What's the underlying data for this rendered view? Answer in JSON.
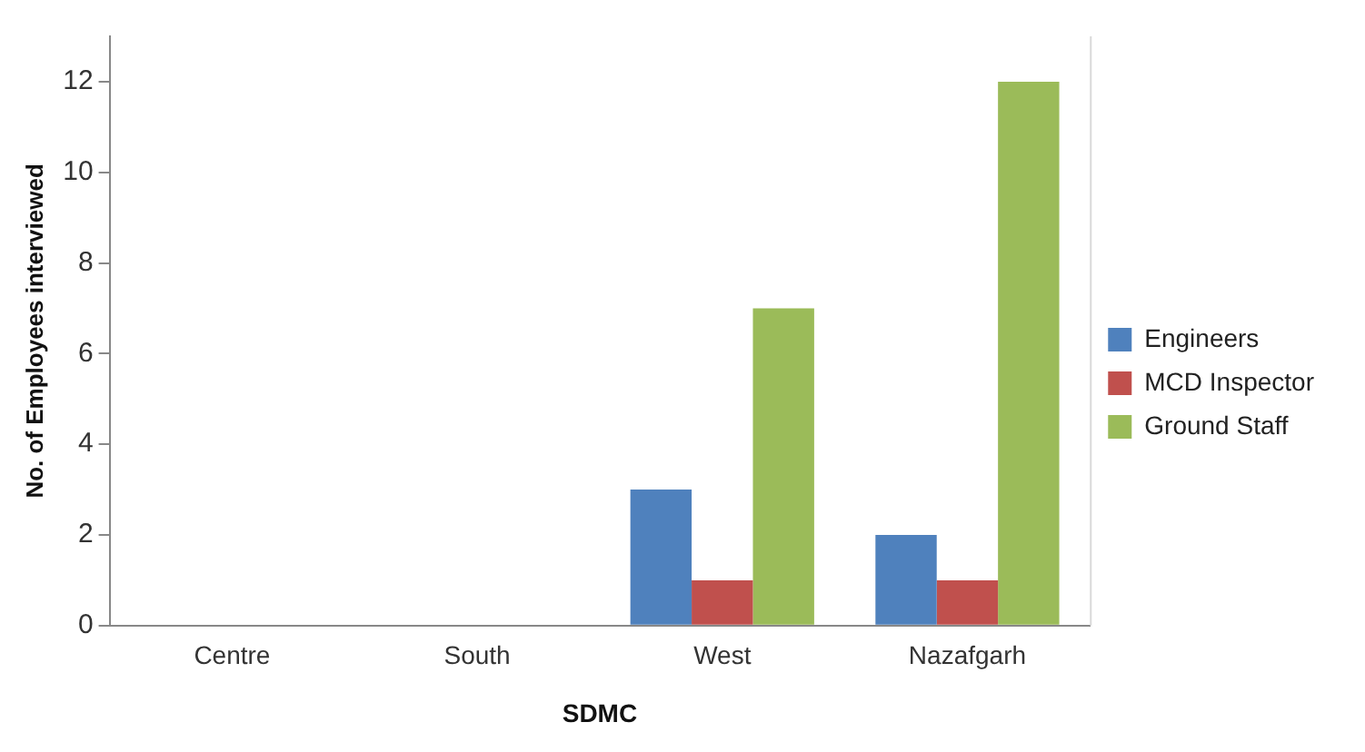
{
  "chart_data": {
    "type": "bar",
    "xlabel": "SDMC",
    "ylabel": "No. of Employees interviewed",
    "categories": [
      "Centre",
      "South",
      "West",
      "Nazafgarh"
    ],
    "series": [
      {
        "name": "Engineers",
        "color": "#4f81bd",
        "values": [
          0,
          0,
          3,
          2
        ]
      },
      {
        "name": "MCD Inspector",
        "color": "#c0504d",
        "values": [
          0,
          0,
          1,
          1
        ]
      },
      {
        "name": "Ground Staff",
        "color": "#9bbb59",
        "values": [
          0,
          0,
          7,
          12
        ]
      }
    ],
    "ylim": [
      0,
      13
    ],
    "yticks": [
      0,
      2,
      4,
      6,
      8,
      10,
      12
    ],
    "grid": false,
    "legend": "right"
  }
}
